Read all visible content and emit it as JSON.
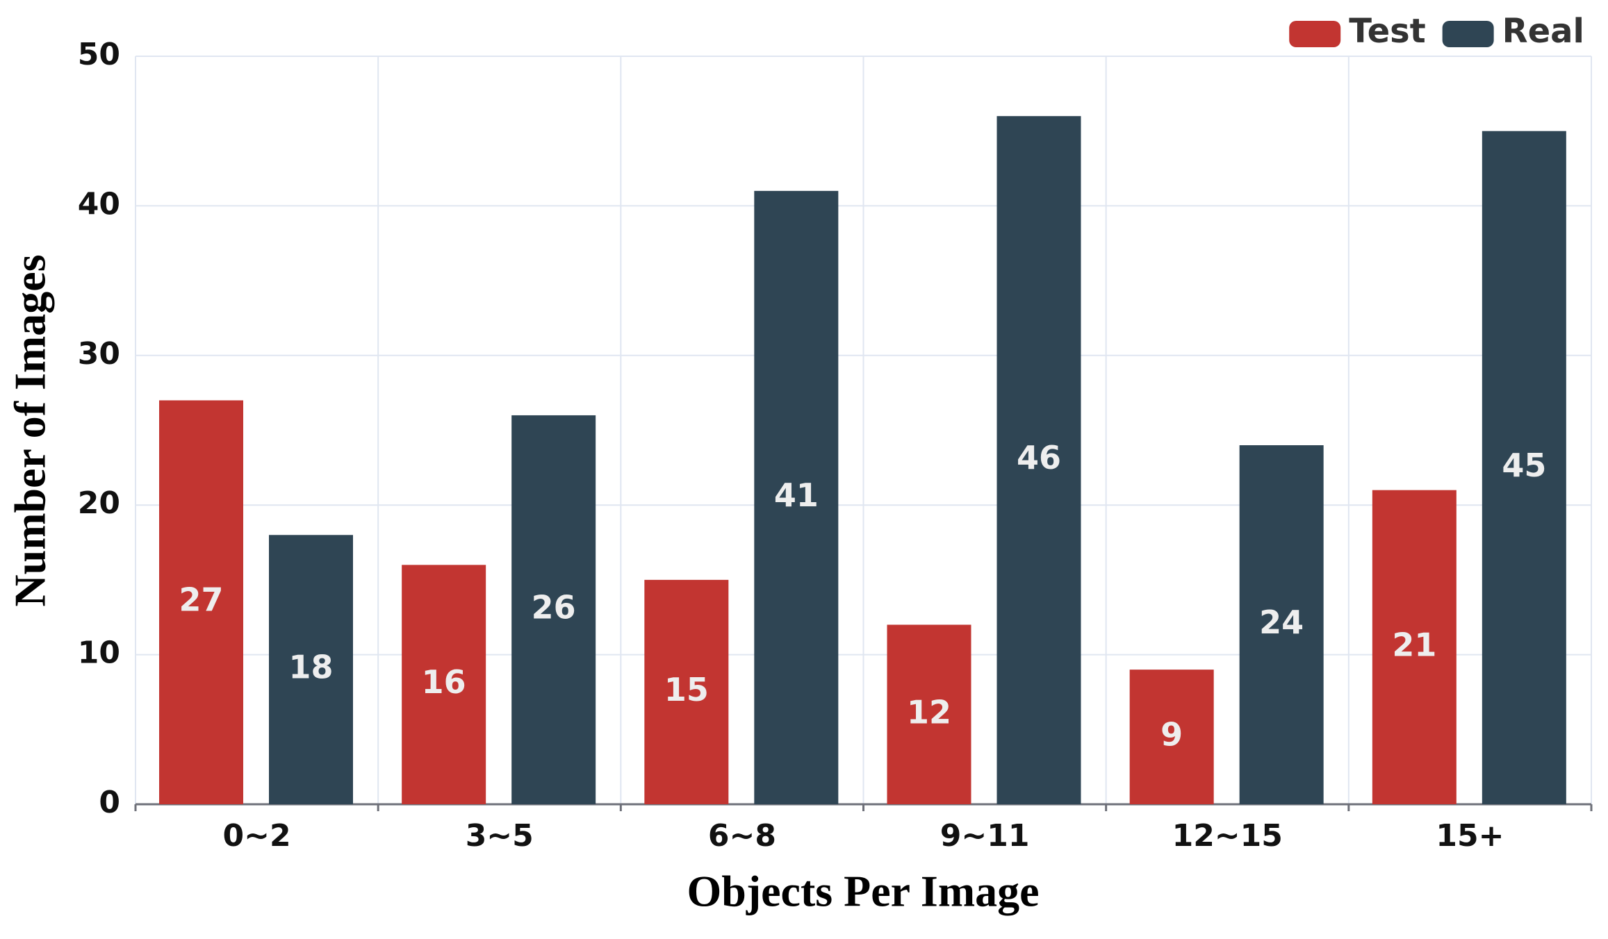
{
  "chart_data": {
    "type": "bar",
    "x_label": "Objects Per Image",
    "y_label": "Number of Images",
    "categories": [
      "0~2",
      "3~5",
      "6~8",
      "9~11",
      "12~15",
      "15+"
    ],
    "series": [
      {
        "name": "Test",
        "color": "#c23531",
        "values": [
          27,
          16,
          15,
          12,
          9,
          21
        ]
      },
      {
        "name": "Real",
        "color": "#2f4554",
        "values": [
          18,
          26,
          41,
          46,
          24,
          45
        ]
      }
    ],
    "ylim": [
      0,
      50
    ],
    "yticks": [
      0,
      10,
      20,
      30,
      40,
      50
    ],
    "grid": true,
    "legend": "top-right"
  }
}
